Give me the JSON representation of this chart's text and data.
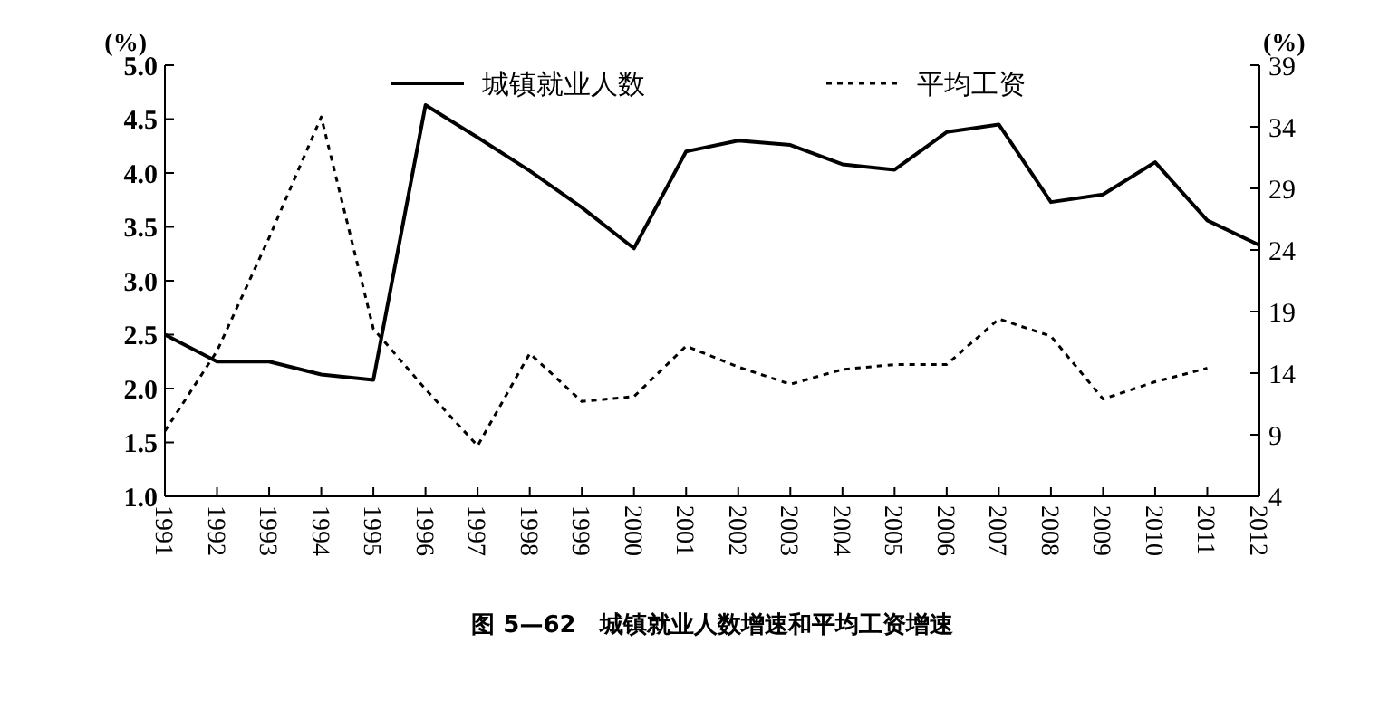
{
  "chart_data": {
    "type": "line",
    "title": "图 5—62　城镇就业人数增速和平均工资增速",
    "ylabel": "(%)",
    "y2label": "(%)",
    "categories": [
      "1991",
      "1992",
      "1993",
      "1994",
      "1995",
      "1996",
      "1997",
      "1998",
      "1999",
      "2000",
      "2001",
      "2002",
      "2003",
      "2004",
      "2005",
      "2006",
      "2007",
      "2008",
      "2009",
      "2010",
      "2011",
      "2012"
    ],
    "series": [
      {
        "name": "城镇就业人数",
        "color": "#000000",
        "line_style": "solid",
        "values": [
          2.5,
          2.25,
          2.25,
          2.13,
          2.08,
          4.63,
          4.33,
          4.02,
          3.68,
          3.3,
          4.2,
          4.3,
          4.26,
          4.08,
          4.03,
          4.38,
          4.45,
          3.73,
          3.8,
          4.1,
          3.56,
          3.33
        ]
      },
      {
        "name": "平均工资",
        "color": "#000000",
        "line_style": "dashed",
        "axis": "y2",
        "values": [
          9.3,
          15.8,
          25,
          34.8,
          17.6,
          12.7,
          8.1,
          15.6,
          11.7,
          12.1,
          16.2,
          14.5,
          13.1,
          14.3,
          14.7,
          14.7,
          18.4,
          17,
          11.9,
          13.3,
          14.4,
          null
        ]
      }
    ],
    "ylim": [
      1,
      5
    ],
    "yticks": [
      {
        "value": 1,
        "label": "1.0"
      },
      {
        "value": 1.5,
        "label": "1.5"
      },
      {
        "value": 2,
        "label": "2.0"
      },
      {
        "value": 2.5,
        "label": "2.5"
      },
      {
        "value": 3,
        "label": "3.0"
      },
      {
        "value": 3.5,
        "label": "3.5"
      },
      {
        "value": 4,
        "label": "4.0"
      },
      {
        "value": 4.5,
        "label": "4.5"
      },
      {
        "value": 5,
        "label": "5.0"
      }
    ],
    "y2lim": [
      4,
      39
    ],
    "y2ticks": [
      4,
      9,
      14,
      19,
      24,
      29,
      34,
      39
    ],
    "grid": false,
    "legend": "top",
    "marker": "none"
  }
}
